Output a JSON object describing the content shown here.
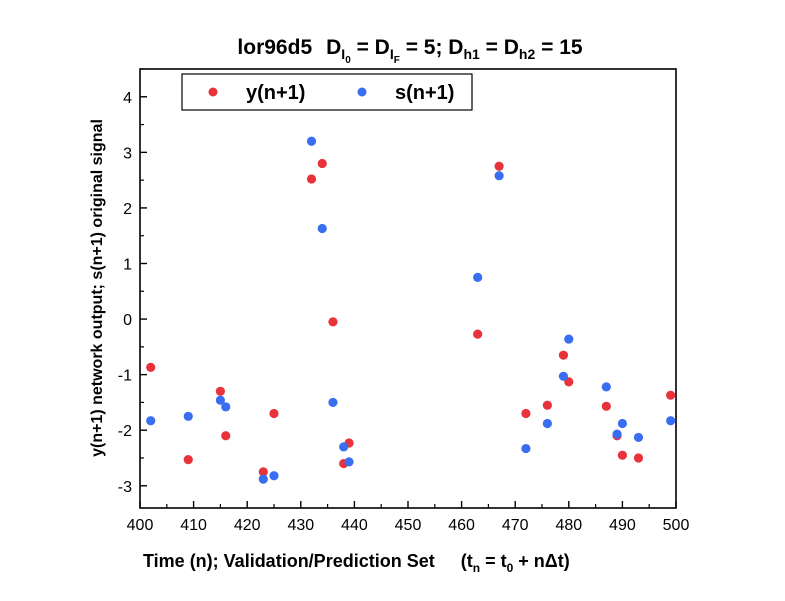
{
  "colors": {
    "series1": "#e8323c",
    "series2": "#3a6ef0",
    "axis": "#000000",
    "background": "#ffffff"
  },
  "chart_data": {
    "type": "scatter",
    "title": {
      "prefix": "lor96d5",
      "part1": "D",
      "part1_sub": "I",
      "part1_subsub": "0",
      "eq1": " = D",
      "part2_sub": "I",
      "part2_subsub": "F",
      "eq2": " = 5; D",
      "part3_sub": "h1",
      "eq3": " = D",
      "part4_sub": "h2",
      "eq4": " = 15"
    },
    "xlabel": {
      "main": "Time (n); Validation/Prediction Set",
      "formula_t": "(t",
      "formula_sub_n": "n",
      "formula_mid": " = t",
      "formula_sub_0": "0",
      "formula_end": " + nΔt)"
    },
    "ylabel": "y(n+1) network output; s(n+1) original signal",
    "xlim": [
      400,
      500
    ],
    "ylim": [
      -3.4,
      4.5
    ],
    "xticks": [
      "400",
      "410",
      "420",
      "430",
      "440",
      "450",
      "460",
      "470",
      "480",
      "490",
      "500"
    ],
    "yticks": [
      "-3",
      "-2",
      "-1",
      "0",
      "1",
      "2",
      "3",
      "4"
    ],
    "legend": {
      "placement": "top-left"
    },
    "series": [
      {
        "name": "y(n+1)",
        "color": "#e8323c",
        "points": [
          [
            402,
            -0.87
          ],
          [
            409,
            -2.53
          ],
          [
            415,
            -1.3
          ],
          [
            416,
            -2.1
          ],
          [
            423,
            -2.75
          ],
          [
            425,
            -1.7
          ],
          [
            432,
            2.52
          ],
          [
            434,
            2.8
          ],
          [
            436,
            -0.05
          ],
          [
            438,
            -2.6
          ],
          [
            439,
            -2.23
          ],
          [
            463,
            -0.27
          ],
          [
            467,
            2.75
          ],
          [
            472,
            -1.7
          ],
          [
            476,
            -1.55
          ],
          [
            479,
            -0.65
          ],
          [
            480,
            -1.13
          ],
          [
            487,
            -1.57
          ],
          [
            489,
            -2.1
          ],
          [
            490,
            -2.45
          ],
          [
            493,
            -2.5
          ],
          [
            499,
            -1.37
          ]
        ]
      },
      {
        "name": "s(n+1)",
        "color": "#3a6ef0",
        "points": [
          [
            402,
            -1.83
          ],
          [
            409,
            -1.75
          ],
          [
            415,
            -1.46
          ],
          [
            416,
            -1.58
          ],
          [
            423,
            -2.88
          ],
          [
            425,
            -2.82
          ],
          [
            432,
            3.2
          ],
          [
            434,
            1.63
          ],
          [
            436,
            -1.5
          ],
          [
            438,
            -2.3
          ],
          [
            439,
            -2.57
          ],
          [
            463,
            0.75
          ],
          [
            467,
            2.58
          ],
          [
            472,
            -2.33
          ],
          [
            476,
            -1.88
          ],
          [
            479,
            -1.03
          ],
          [
            480,
            -0.36
          ],
          [
            487,
            -1.22
          ],
          [
            489,
            -2.07
          ],
          [
            490,
            -1.88
          ],
          [
            493,
            -2.13
          ],
          [
            499,
            -1.83
          ]
        ]
      }
    ]
  }
}
